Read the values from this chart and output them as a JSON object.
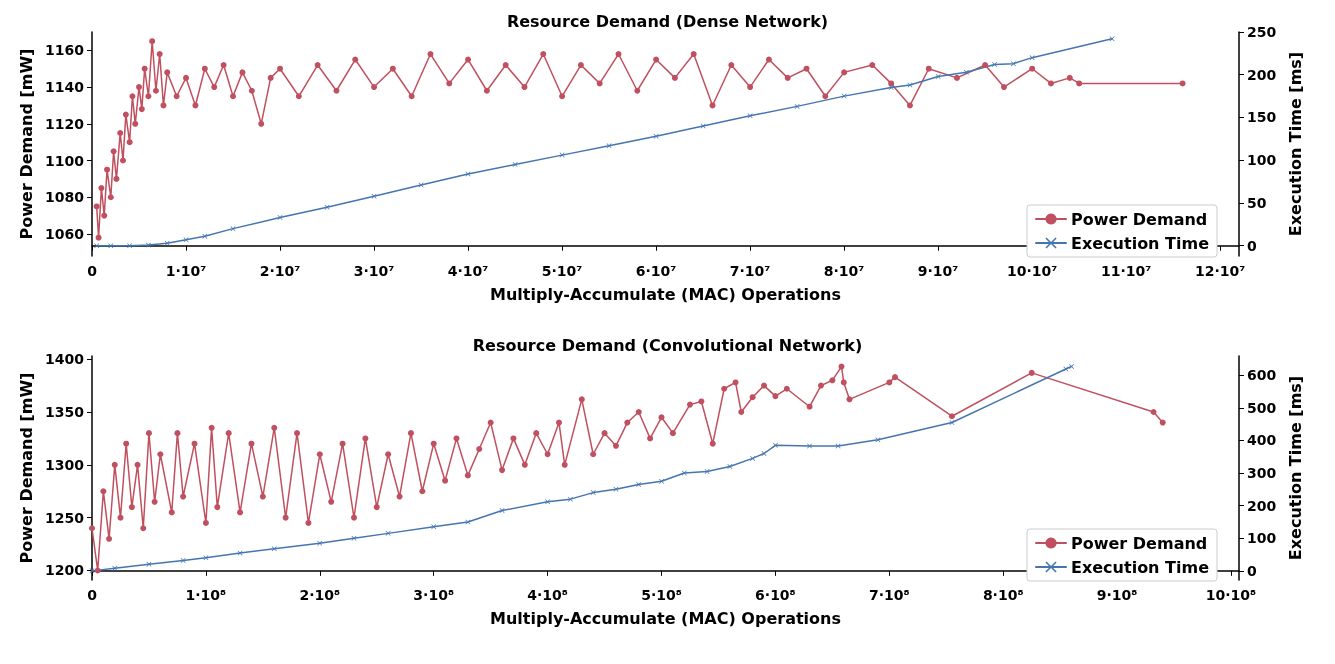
{
  "chart_data": [
    {
      "type": "line",
      "title": "Resource Demand (Dense Network)",
      "xlabel": "Multiply-Accumulate (MAC) Operations",
      "ylabel": "Power Demand [mW]",
      "y2label": "Execution Time [ms]",
      "xlim": [
        0,
        122000000.0
      ],
      "xticks": [
        {
          "value": 0,
          "label": "0"
        },
        {
          "value": 10000000.0,
          "label": "1·10⁷"
        },
        {
          "value": 20000000.0,
          "label": "2·10⁷"
        },
        {
          "value": 30000000.0,
          "label": "3·10⁷"
        },
        {
          "value": 40000000.0,
          "label": "4·10⁷"
        },
        {
          "value": 50000000.0,
          "label": "5·10⁷"
        },
        {
          "value": 60000000.0,
          "label": "6·10⁷"
        },
        {
          "value": 70000000.0,
          "label": "7·10⁷"
        },
        {
          "value": 80000000.0,
          "label": "8·10⁷"
        },
        {
          "value": 90000000.0,
          "label": "9·10⁷"
        },
        {
          "value": 100000000.0,
          "label": "10·10⁷"
        },
        {
          "value": 110000000.0,
          "label": "11·10⁷"
        },
        {
          "value": 120000000.0,
          "label": "12·10⁷"
        }
      ],
      "ylim": [
        1048,
        1170
      ],
      "yticks": [
        1060,
        1080,
        1100,
        1120,
        1140,
        1160
      ],
      "y2lim": [
        -12,
        250
      ],
      "y2ticks": [
        0,
        50,
        100,
        150,
        200,
        250
      ],
      "grid": false,
      "legend": "bottom right",
      "line_style": "solid",
      "series": [
        {
          "name": "Power Demand",
          "color": "#c0505f",
          "marker": "circle",
          "x": [
            500000.0,
            700000.0,
            1000000.0,
            1300000.0,
            1600000.0,
            2000000.0,
            2300000.0,
            2600000.0,
            3000000.0,
            3300000.0,
            3600000.0,
            4000000.0,
            4300000.0,
            4600000.0,
            5000000.0,
            5300000.0,
            5600000.0,
            6000000.0,
            6400000.0,
            6800000.0,
            7200000.0,
            7600000.0,
            8000000.0,
            9000000.0,
            10000000.0,
            11000000.0,
            12000000.0,
            13000000.0,
            14000000.0,
            15000000.0,
            16000000.0,
            17000000.0,
            18000000.0,
            19000000.0,
            20000000.0,
            22000000.0,
            24000000.0,
            26000000.0,
            28000000.0,
            30000000.0,
            32000000.0,
            34000000.0,
            36000000.0,
            38000000.0,
            40000000.0,
            42000000.0,
            44000000.0,
            46000000.0,
            48000000.0,
            50000000.0,
            52000000.0,
            54000000.0,
            56000000.0,
            58000000.0,
            60000000.0,
            62000000.0,
            64000000.0,
            66000000.0,
            68000000.0,
            70000000.0,
            72000000.0,
            74000000.0,
            76000000.0,
            78000000.0,
            80000000.0,
            83000000.0,
            85000000.0,
            87000000.0,
            89000000.0,
            92000000.0,
            95000000.0,
            97000000.0,
            100000000.0,
            102000000.0,
            104000000.0,
            105000000.0,
            116000000.0
          ],
          "values": [
            1075,
            1058,
            1085,
            1070,
            1095,
            1080,
            1105,
            1090,
            1115,
            1100,
            1125,
            1110,
            1135,
            1120,
            1140,
            1128,
            1150,
            1135,
            1165,
            1138,
            1158,
            1130,
            1148,
            1135,
            1145,
            1130,
            1150,
            1140,
            1152,
            1135,
            1148,
            1138,
            1120,
            1145,
            1150,
            1135,
            1152,
            1138,
            1155,
            1140,
            1150,
            1135,
            1158,
            1142,
            1155,
            1138,
            1152,
            1140,
            1158,
            1135,
            1152,
            1142,
            1158,
            1138,
            1155,
            1145,
            1158,
            1130,
            1152,
            1140,
            1155,
            1145,
            1150,
            1135,
            1148,
            1152,
            1142,
            1130,
            1150,
            1145,
            1152,
            1140,
            1150,
            1142,
            1145,
            1142,
            1142
          ]
        },
        {
          "name": "Execution Time",
          "color": "#4575b0",
          "marker": "cross",
          "axis": "y2",
          "x": [
            500000.0,
            2000000.0,
            4000000.0,
            6000000.0,
            8000000.0,
            10000000.0,
            12000000.0,
            15000000.0,
            20000000.0,
            25000000.0,
            30000000.0,
            35000000.0,
            40000000.0,
            45000000.0,
            50000000.0,
            55000000.0,
            60000000.0,
            65000000.0,
            70000000.0,
            75000000.0,
            80000000.0,
            85000000.0,
            87000000.0,
            90000000.0,
            93000000.0,
            96000000.0,
            98000000.0,
            100000000.0,
            108500000.0
          ],
          "values": [
            0,
            0,
            0,
            1,
            3,
            7,
            11,
            20,
            33,
            45,
            58,
            71,
            84,
            95,
            106,
            117,
            128,
            140,
            152,
            163,
            175,
            185,
            188,
            198,
            203,
            212,
            213,
            220,
            242
          ]
        }
      ]
    },
    {
      "type": "line",
      "title": "Resource Demand (Convolutional Network)",
      "xlabel": "Multiply-Accumulate (MAC) Operations",
      "ylabel": "Power Demand [mW]",
      "y2label": "Execution Time [ms]",
      "xlim": [
        0,
        1007000000.0
      ],
      "xticks": [
        {
          "value": 0,
          "label": "0"
        },
        {
          "value": 100000000.0,
          "label": "1·10⁸"
        },
        {
          "value": 200000000.0,
          "label": "2·10⁸"
        },
        {
          "value": 300000000.0,
          "label": "3·10⁸"
        },
        {
          "value": 400000000.0,
          "label": "4·10⁸"
        },
        {
          "value": 500000000.0,
          "label": "5·10⁸"
        },
        {
          "value": 600000000.0,
          "label": "6·10⁸"
        },
        {
          "value": 700000000.0,
          "label": "7·10⁸"
        },
        {
          "value": 800000000.0,
          "label": "8·10⁸"
        },
        {
          "value": 900000000.0,
          "label": "9·10⁸"
        },
        {
          "value": 1000000000.0,
          "label": "10·10⁸"
        }
      ],
      "ylim": [
        1191,
        1403
      ],
      "yticks": [
        1200,
        1250,
        1300,
        1350,
        1400
      ],
      "y2lim": [
        -28,
        659
      ],
      "y2ticks": [
        0,
        100,
        200,
        300,
        400,
        500,
        600
      ],
      "grid": false,
      "legend": "bottom right",
      "line_style": "solid",
      "series": [
        {
          "name": "Power Demand",
          "color": "#c0505f",
          "marker": "circle",
          "x": [
            0,
            5000000.0,
            10000000.0,
            15000000.0,
            20000000.0,
            25000000.0,
            30000000.0,
            35000000.0,
            40000000.0,
            45000000.0,
            50000000.0,
            55000000.0,
            60000000.0,
            70000000.0,
            75000000.0,
            80000000.0,
            90000000.0,
            100000000.0,
            105000000.0,
            110000000.0,
            120000000.0,
            130000000.0,
            140000000.0,
            150000000.0,
            160000000.0,
            170000000.0,
            180000000.0,
            190000000.0,
            200000000.0,
            210000000.0,
            220000000.0,
            230000000.0,
            240000000.0,
            250000000.0,
            260000000.0,
            270000000.0,
            280000000.0,
            290000000.0,
            300000000.0,
            310000000.0,
            320000000.0,
            330000000.0,
            340000000.0,
            350000000.0,
            360000000.0,
            370000000.0,
            380000000.0,
            390000000.0,
            400000000.0,
            410000000.0,
            415000000.0,
            430000000.0,
            440000000.0,
            450000000.0,
            460000000.0,
            470000000.0,
            480000000.0,
            490000000.0,
            500000000.0,
            510000000.0,
            525000000.0,
            535000000.0,
            545000000.0,
            555000000.0,
            565000000.0,
            570000000.0,
            580000000.0,
            590000000.0,
            600000000.0,
            610000000.0,
            630000000.0,
            640000000.0,
            650000000.0,
            658000000.0,
            660000000.0,
            665000000.0,
            700000000.0,
            705000000.0,
            755000000.0,
            825000000.0,
            932000000.0,
            940000000.0
          ],
          "values": [
            1240,
            1200,
            1275,
            1230,
            1300,
            1250,
            1320,
            1260,
            1300,
            1240,
            1330,
            1265,
            1310,
            1255,
            1330,
            1270,
            1320,
            1245,
            1335,
            1260,
            1330,
            1255,
            1320,
            1270,
            1335,
            1250,
            1330,
            1245,
            1310,
            1265,
            1320,
            1250,
            1325,
            1260,
            1310,
            1270,
            1330,
            1275,
            1320,
            1285,
            1325,
            1290,
            1315,
            1340,
            1295,
            1325,
            1300,
            1330,
            1310,
            1340,
            1300,
            1362,
            1310,
            1330,
            1318,
            1340,
            1350,
            1325,
            1345,
            1330,
            1357,
            1360,
            1320,
            1372,
            1378,
            1350,
            1364,
            1375,
            1365,
            1372,
            1355,
            1375,
            1380,
            1393,
            1378,
            1362,
            1378,
            1383,
            1346,
            1387,
            1350,
            1340
          ]
        },
        {
          "name": "Execution Time",
          "color": "#4575b0",
          "marker": "cross",
          "axis": "y2",
          "x": [
            0,
            20000000.0,
            50000000.0,
            80000000.0,
            100000000.0,
            130000000.0,
            160000000.0,
            200000000.0,
            230000000.0,
            260000000.0,
            300000000.0,
            330000000.0,
            360000000.0,
            400000000.0,
            420000000.0,
            440000000.0,
            460000000.0,
            480000000.0,
            500000000.0,
            520000000.0,
            540000000.0,
            560000000.0,
            580000000.0,
            590000000.0,
            600000000.0,
            630000000.0,
            655000000.0,
            690000000.0,
            755000000.0,
            855000000.0,
            860000000.0
          ],
          "values": [
            0,
            8,
            20,
            32,
            40,
            55,
            68,
            85,
            100,
            115,
            135,
            150,
            185,
            212,
            220,
            240,
            250,
            265,
            275,
            300,
            305,
            320,
            345,
            360,
            385,
            383,
            383,
            402,
            455,
            619,
            627
          ]
        }
      ]
    }
  ]
}
